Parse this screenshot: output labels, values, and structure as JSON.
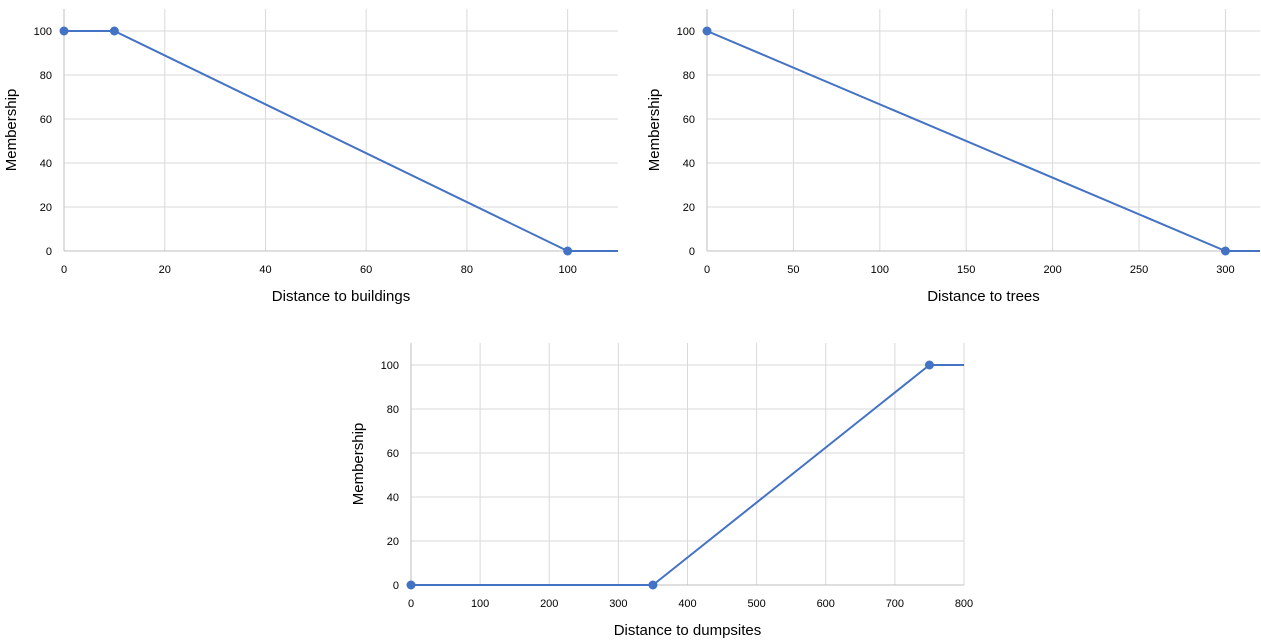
{
  "chart_data": [
    {
      "type": "line",
      "xlabel": "Distance to buildings",
      "ylabel": "Membership",
      "xlim": [
        0,
        110
      ],
      "ylim": [
        0,
        110
      ],
      "x_ticks": [
        0,
        20,
        40,
        60,
        80,
        100
      ],
      "y_ticks": [
        0,
        20,
        40,
        60,
        80,
        100
      ],
      "grid": true,
      "color": "#4472C4",
      "series": [
        {
          "points": [
            [
              0,
              100
            ],
            [
              10,
              100
            ],
            [
              100,
              0
            ],
            [
              110,
              0
            ]
          ],
          "markers": [
            [
              0,
              100
            ],
            [
              10,
              100
            ],
            [
              100,
              0
            ]
          ]
        }
      ]
    },
    {
      "type": "line",
      "xlabel": "Distance to trees",
      "ylabel": "Membership",
      "xlim": [
        0,
        320
      ],
      "ylim": [
        0,
        110
      ],
      "x_ticks": [
        0,
        50,
        100,
        150,
        200,
        250,
        300
      ],
      "y_ticks": [
        0,
        20,
        40,
        60,
        80,
        100
      ],
      "grid": true,
      "color": "#4472C4",
      "series": [
        {
          "points": [
            [
              0,
              100
            ],
            [
              300,
              0
            ],
            [
              320,
              0
            ]
          ],
          "markers": [
            [
              0,
              100
            ],
            [
              300,
              0
            ]
          ]
        }
      ]
    },
    {
      "type": "line",
      "xlabel": "Distance to dumpsites",
      "ylabel": "Membership",
      "xlim": [
        0,
        800
      ],
      "ylim": [
        0,
        110
      ],
      "x_ticks": [
        0,
        100,
        200,
        300,
        400,
        500,
        600,
        700,
        800
      ],
      "y_ticks": [
        0,
        20,
        40,
        60,
        80,
        100
      ],
      "grid": true,
      "color": "#4472C4",
      "series": [
        {
          "points": [
            [
              0,
              0
            ],
            [
              350,
              0
            ],
            [
              750,
              100
            ],
            [
              800,
              100
            ]
          ],
          "markers": [
            [
              0,
              0
            ],
            [
              350,
              0
            ],
            [
              750,
              100
            ]
          ]
        }
      ]
    }
  ]
}
